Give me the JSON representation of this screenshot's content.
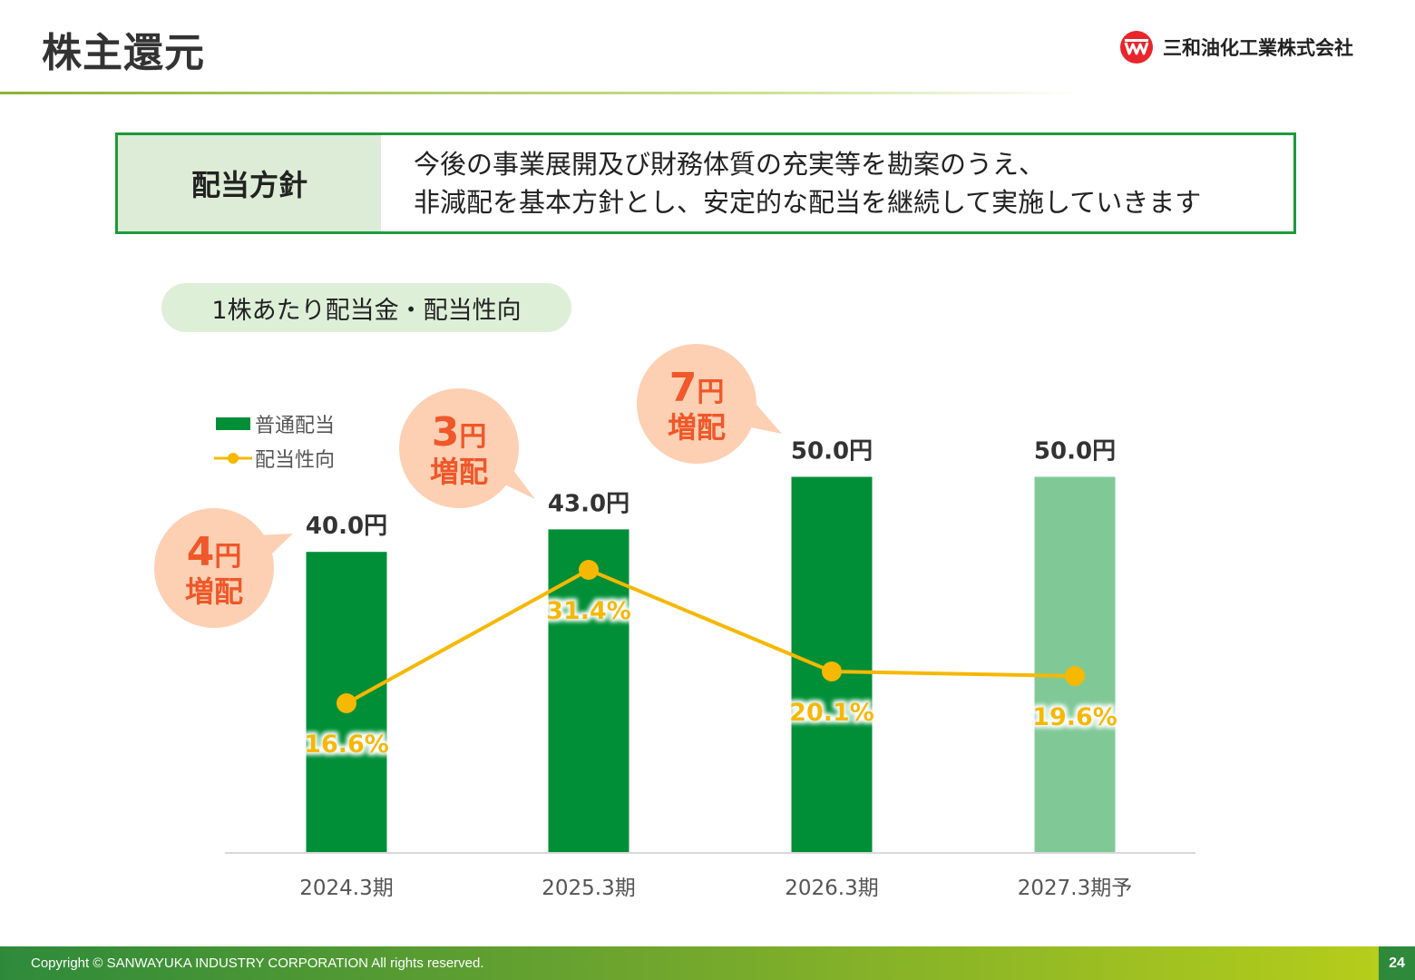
{
  "header": {
    "title": "株主還元",
    "company_name": "三和油化工業株式会社"
  },
  "policy": {
    "label": "配当方針",
    "line1": "今後の事業展開及び財務体質の充実等を勘案のうえ、",
    "line2": "非減配を基本方針とし、安定的な配当を継続して実施していきます"
  },
  "section": {
    "title": "1株あたり配当金・配当性向"
  },
  "colors": {
    "bar_actual": "#008f36",
    "bar_forecast": "#80c997",
    "payout_line": "#f6b800",
    "callout_bg": "#fdd0b3",
    "callout_text": "#f0572a"
  },
  "chart_data": {
    "type": "bar",
    "categories": [
      "2024.3期",
      "2025.3期",
      "2026.3期",
      "2027.3期予"
    ],
    "series": [
      {
        "name": "普通配当",
        "type": "bar",
        "values": [
          40.0,
          43.0,
          50.0,
          50.0
        ],
        "labels": [
          "40.0円",
          "43.0円",
          "50.0円",
          "50.0円"
        ]
      },
      {
        "name": "配当性向",
        "type": "line",
        "values": [
          16.6,
          31.4,
          20.1,
          19.6
        ],
        "labels": [
          "16.6%",
          "31.4%",
          "20.1%",
          "19.6%"
        ]
      }
    ],
    "forecast_index": 3,
    "legend": {
      "position": "top-left",
      "items": [
        "普通配当",
        "配当性向"
      ]
    },
    "callouts": [
      {
        "amount": "4",
        "unit": "円",
        "text": "増配",
        "category": "2024.3期"
      },
      {
        "amount": "3",
        "unit": "円",
        "text": "増配",
        "category": "2025.3期"
      },
      {
        "amount": "7",
        "unit": "円",
        "text": "増配",
        "category": "2026.3期"
      }
    ],
    "bar_ylim": [
      0,
      60
    ],
    "line_ylim": [
      0,
      40
    ],
    "grid": false
  },
  "footer": {
    "copyright": "Copyright © SANWAYUKA INDUSTRY CORPORATION All rights reserved.",
    "page_number": "24"
  }
}
